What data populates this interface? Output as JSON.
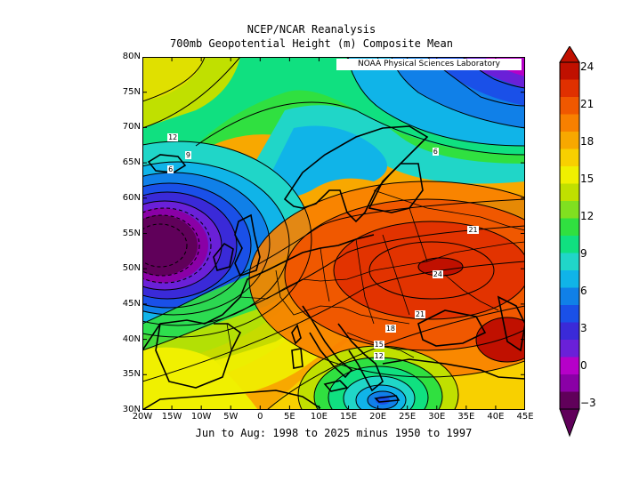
{
  "header": {
    "title": "NCEP/NCAR Reanalysis",
    "subtitle": "700mb Geopotential Height (m) Composite Mean"
  },
  "caption": "Jun to Aug: 1998 to 2025 minus 1950 to 1997",
  "credit": "NOAA Physical Sciences Laboratory",
  "map": {
    "lon_range": [
      -20,
      45
    ],
    "lat_range": [
      30,
      80
    ],
    "lat_labels": [
      "80N",
      "75N",
      "70N",
      "65N",
      "60N",
      "55N",
      "50N",
      "45N",
      "40N",
      "35N",
      "30N"
    ],
    "lon_labels": [
      "20W",
      "15W",
      "10W",
      "5W",
      "0",
      "5E",
      "10E",
      "15E",
      "20E",
      "25E",
      "30E",
      "35E",
      "40E",
      "45E"
    ]
  },
  "colorbar": {
    "labels": [
      "24",
      "21",
      "18",
      "15",
      "12",
      "9",
      "6",
      "3",
      "0",
      "−3"
    ],
    "colors": [
      "#60005a",
      "#8a00a6",
      "#b600c8",
      "#6a20d8",
      "#3a2ad8",
      "#1a50e8",
      "#1080e8",
      "#10b4e8",
      "#20d6c8",
      "#10e080",
      "#30e040",
      "#80e020",
      "#c0e000",
      "#f0f000",
      "#f8d000",
      "#f8a800",
      "#f88000",
      "#f05800",
      "#e03000",
      "#c01000"
    ]
  },
  "contour_labels": [
    {
      "text": "12",
      "lon": -15,
      "lat": 68.5
    },
    {
      "text": "9",
      "lon": -12,
      "lat": 66
    },
    {
      "text": "6",
      "lon": -15,
      "lat": 64
    },
    {
      "text": "6",
      "lon": 30,
      "lat": 66.5
    },
    {
      "text": "21",
      "lon": 36,
      "lat": 55.5
    },
    {
      "text": "24",
      "lon": 30,
      "lat": 49.2
    },
    {
      "text": "21",
      "lon": 27,
      "lat": 43.5
    },
    {
      "text": "18",
      "lon": 22,
      "lat": 41.5
    },
    {
      "text": "15",
      "lon": 20,
      "lat": 39.2
    },
    {
      "text": "12",
      "lon": 20,
      "lat": 37.5
    }
  ]
}
